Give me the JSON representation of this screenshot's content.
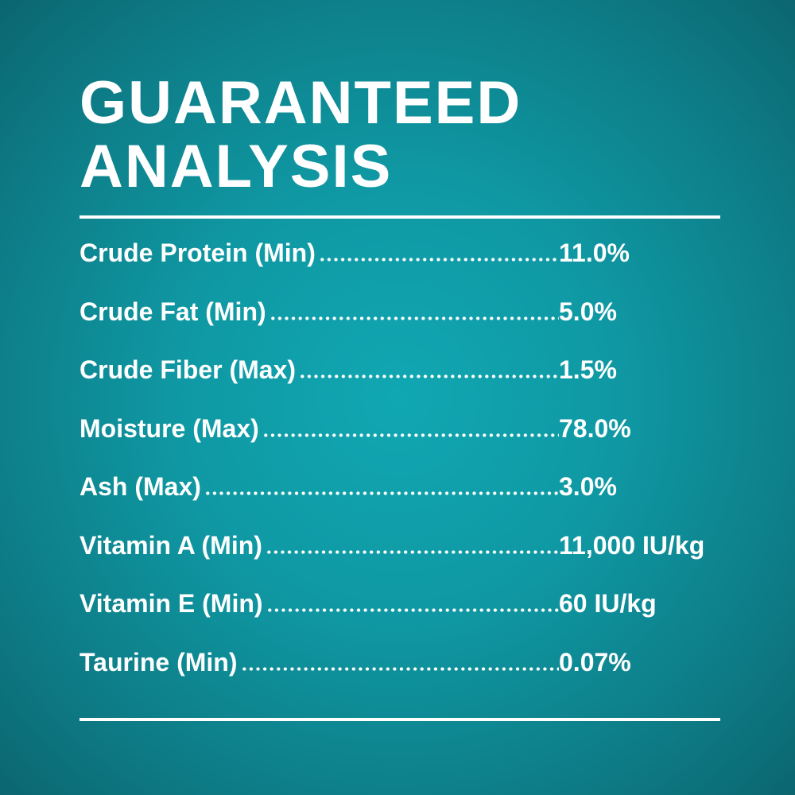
{
  "header": {
    "title": [
      "GUARANTEED",
      "ANALYSIS"
    ]
  },
  "table": {
    "rows": [
      [
        "Crude Protein (Min)",
        "11.0%"
      ],
      [
        "Crude Fat (Min)",
        "5.0%"
      ],
      [
        "Crude Fiber (Max)",
        "1.5%"
      ],
      [
        "Moisture (Max)",
        "78.0%"
      ],
      [
        "Ash (Max)",
        "3.0%"
      ],
      [
        "Vitamin A (Min)",
        "11,000 IU/kg"
      ],
      [
        "Vitamin E (Min)",
        "60 IU/kg"
      ],
      [
        "Taurine (Min)",
        "0.07%"
      ]
    ]
  }
}
